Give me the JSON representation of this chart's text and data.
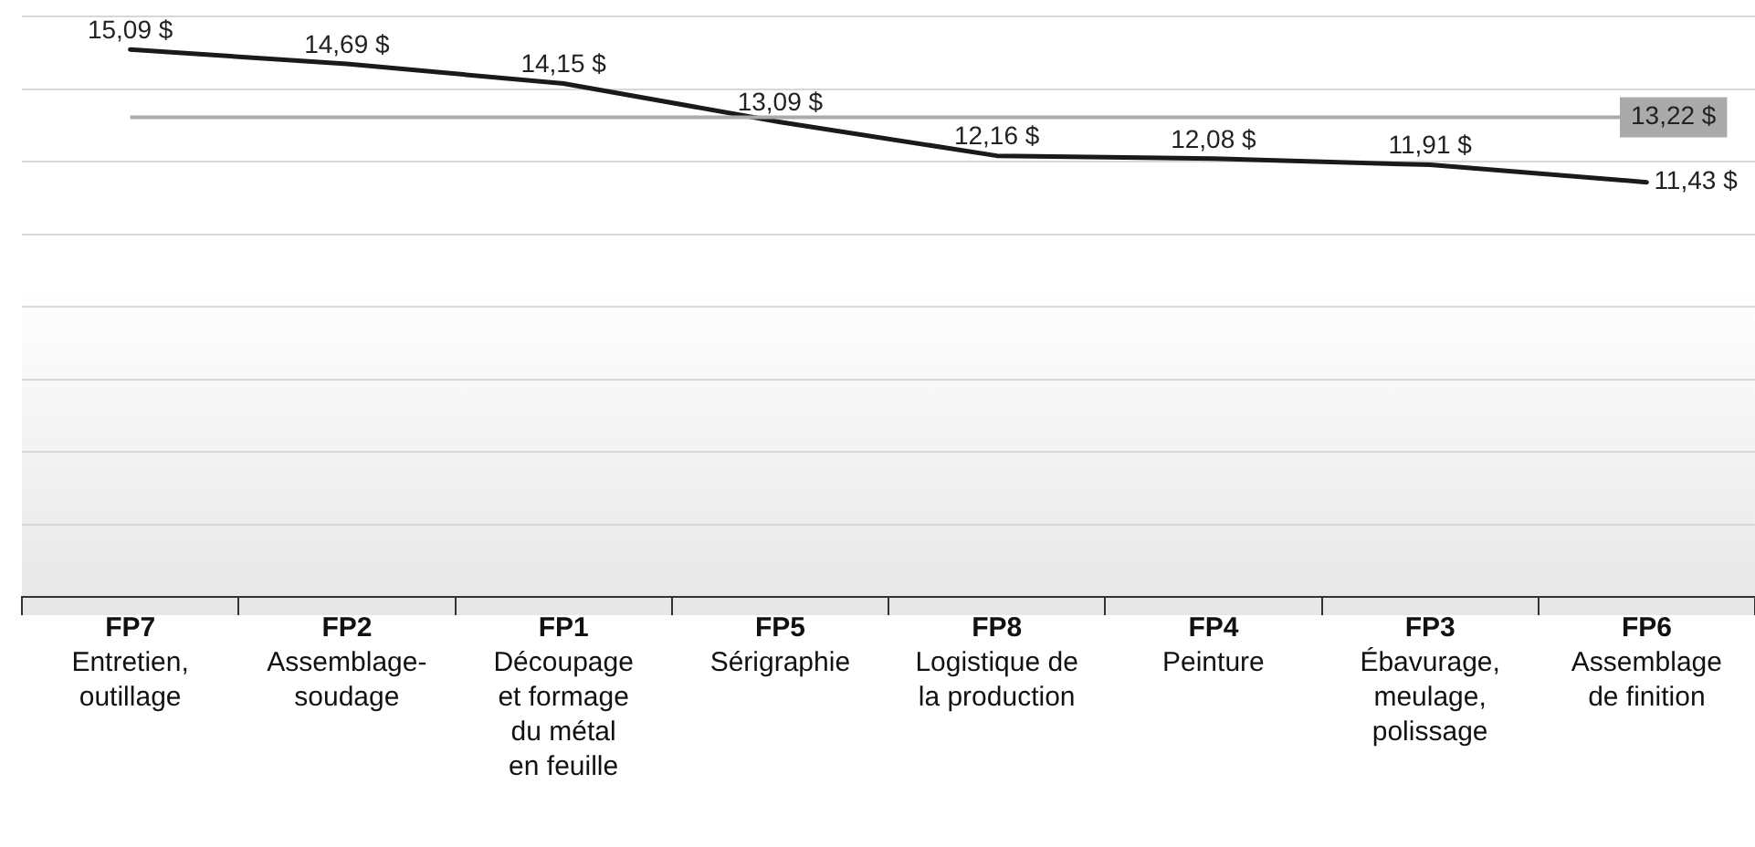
{
  "chart_data": {
    "type": "line",
    "categories": [
      "FP7\nEntretien,\noutillage",
      "FP2\nAssemblage-\nsoudage",
      "FP1\nDécoupage\net formage\ndu métal\nen feuille",
      "FP5\nSérigraphie",
      "FP8\nLogistique de\nla production",
      "FP4\nPeinture",
      "FP3\nÉbavurage,\nmeulage,\npolissage",
      "FP6\nAssemblage\nde finition"
    ],
    "series": [
      {
        "color": "#1a1a1a",
        "values": [
          15.09,
          14.69,
          14.15,
          13.09,
          12.16,
          12.08,
          11.91,
          11.43
        ],
        "value_labels": [
          "15,09 $",
          "14,69 $",
          "14,15 $",
          "13,09 $",
          "12,16 $",
          "12,08 $",
          "11,91 $",
          "11,43 $"
        ]
      }
    ],
    "ylim": [
      0,
      16
    ],
    "yticks": [
      {
        "value": 0,
        "label": null
      },
      {
        "value": 2,
        "label": null
      },
      {
        "value": 4,
        "label": null
      },
      {
        "value": 6,
        "label": null
      },
      {
        "value": 8,
        "label": null
      },
      {
        "value": 10,
        "label": null
      },
      {
        "value": 12,
        "label": null
      },
      {
        "value": 14,
        "label": null
      },
      {
        "value": 16,
        "label": null
      }
    ],
    "tick_labels": "x",
    "grid": "y",
    "legend": false,
    "marker": "none",
    "line_style": "solid",
    "ref_lines": [
      {
        "axis": "y",
        "value": 13.22,
        "label": "13,22 $",
        "color": "#aaaaaa"
      }
    ]
  }
}
